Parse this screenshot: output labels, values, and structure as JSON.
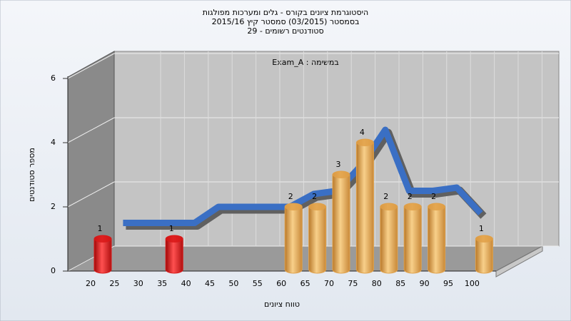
{
  "chart_data": {
    "type": "bar3d",
    "title": [
      "היסטוגרמת ציונים בקורס - גלים ומערכות מפולגות",
      "בסמסטר  (03/2015)  סמסטר קיץ 2015/16",
      "סטודנטים רשומים - 29"
    ],
    "annotation": "Exam_A : במשימה",
    "x_label": "טווח ציונים",
    "y_label": "מספר סטודנטים",
    "categories": [
      "20",
      "25",
      "30",
      "35",
      "40",
      "45",
      "50",
      "55",
      "60",
      "65",
      "70",
      "75",
      "80",
      "85",
      "90",
      "95",
      "100"
    ],
    "series": [
      {
        "values": [
          1,
          0,
          0,
          1,
          0,
          0,
          0,
          0,
          2,
          2,
          3,
          4,
          2,
          2,
          2,
          0,
          1
        ],
        "colors": [
          "#d81818",
          "#d81818",
          "#d81818",
          "#d81818",
          "#d81818",
          "#d81818",
          "#d81818",
          "#d81818",
          "#e0a048",
          "#e0a048",
          "#e0a048",
          "#e0a048",
          "#e0a048",
          "#e0a048",
          "#e0a048",
          "#e0a048",
          "#e0a048"
        ]
      },
      {
        "values": [
          null,
          1.5,
          1.5,
          1.5,
          1.5,
          2.0,
          2.0,
          2.0,
          2.0,
          2.4,
          2.5,
          3.3,
          4.4,
          2.5,
          2.5,
          2.6,
          1.8
        ],
        "color": "#3a6fc4"
      }
    ],
    "ylim": [
      0,
      6
    ],
    "yticks": [
      0,
      2,
      4,
      6
    ],
    "grid": true
  }
}
